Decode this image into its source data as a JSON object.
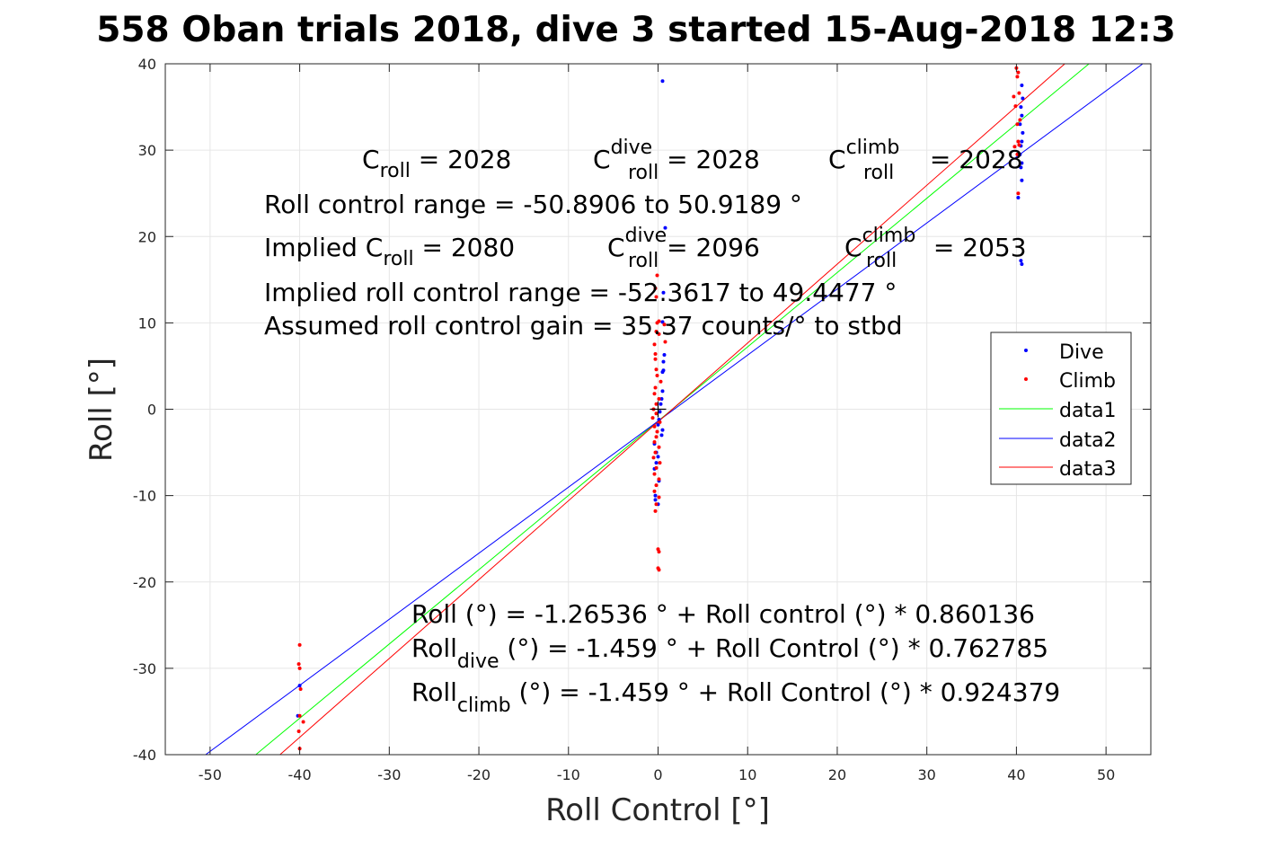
{
  "chart_data": {
    "type": "scatter",
    "title": "558 Oban trials 2018, dive 3 started 15-Aug-2018 12:3",
    "xlabel": "Roll Control [°]",
    "ylabel": "Roll [°]",
    "xlim": [
      -55,
      55
    ],
    "ylim": [
      -40,
      40
    ],
    "xticks": [
      -50,
      -40,
      -30,
      -20,
      -10,
      0,
      10,
      20,
      30,
      40,
      50
    ],
    "yticks": [
      -40,
      -30,
      -20,
      -10,
      0,
      10,
      20,
      30,
      40
    ],
    "grid": true,
    "legend_position": "right",
    "legend": [
      "Dive",
      "Climb",
      "data1",
      "data2",
      "data3"
    ],
    "colors": {
      "dive": "#0000ff",
      "climb": "#ff0000",
      "data1": "#00ff00",
      "data2": "#0000ff",
      "data3": "#ff0000"
    },
    "series": [
      {
        "name": "Dive",
        "style": "points",
        "points": [
          [
            0.5,
            38
          ],
          [
            0.8,
            21
          ],
          [
            0.6,
            13.5
          ],
          [
            0.5,
            10.1
          ],
          [
            0.7,
            6.3
          ],
          [
            0.6,
            5.5
          ],
          [
            0.6,
            4.5
          ],
          [
            0.5,
            4.3
          ],
          [
            0.5,
            2.1
          ],
          [
            0.4,
            1.2
          ],
          [
            0.3,
            0.6
          ],
          [
            0.2,
            -0.3
          ],
          [
            0.1,
            -1.2
          ],
          [
            0.0,
            -1.8
          ],
          [
            0.5,
            -2.4
          ],
          [
            0.4,
            -3
          ],
          [
            -0.4,
            -4
          ],
          [
            -0.2,
            -5
          ],
          [
            0,
            -5.5
          ],
          [
            -0.2,
            -6.2
          ],
          [
            -0.4,
            -6.9
          ],
          [
            0.1,
            -8.3
          ],
          [
            -0.3,
            -10
          ],
          [
            -0.3,
            -10.5
          ],
          [
            0,
            -11
          ],
          [
            40.6,
            37.5
          ],
          [
            40.7,
            36
          ],
          [
            40.5,
            35
          ],
          [
            40.6,
            34
          ],
          [
            40.4,
            33
          ],
          [
            40.7,
            32
          ],
          [
            40.6,
            31
          ],
          [
            40.5,
            30.5
          ],
          [
            40.4,
            29.5
          ],
          [
            40.6,
            28.5
          ],
          [
            40.5,
            28
          ],
          [
            40.6,
            26.5
          ],
          [
            40.2,
            24.5
          ],
          [
            40.5,
            17.2
          ],
          [
            40.6,
            16.8
          ],
          [
            -40,
            -32
          ],
          [
            -40.2,
            -35.5
          ]
        ]
      },
      {
        "name": "Climb",
        "style": "points",
        "points": [
          [
            40,
            39.5
          ],
          [
            40.2,
            39
          ],
          [
            40.1,
            38.5
          ],
          [
            40.3,
            36.6
          ],
          [
            39.7,
            36.2
          ],
          [
            39.9,
            35.1
          ],
          [
            40.4,
            33.5
          ],
          [
            40.1,
            33
          ],
          [
            40.2,
            31
          ],
          [
            40.3,
            30.6
          ],
          [
            39.8,
            30.4
          ],
          [
            40.1,
            29.5
          ],
          [
            40.2,
            25
          ],
          [
            -0.1,
            15.5
          ],
          [
            -0.3,
            14
          ],
          [
            -0.2,
            13
          ],
          [
            -0.1,
            10
          ],
          [
            0.1,
            10.2
          ],
          [
            0.7,
            9.8
          ],
          [
            -0.2,
            9
          ],
          [
            0.1,
            8.7
          ],
          [
            -0.4,
            7.5
          ],
          [
            0.8,
            7.8
          ],
          [
            -0.3,
            6.4
          ],
          [
            -0.3,
            5.8
          ],
          [
            -0.2,
            4.6
          ],
          [
            -0.1,
            3.9
          ],
          [
            0.3,
            3.2
          ],
          [
            -0.3,
            2.5
          ],
          [
            -0.4,
            1.8
          ],
          [
            0.1,
            1.2
          ],
          [
            -0.2,
            0.6
          ],
          [
            -0.5,
            0
          ],
          [
            -0.2,
            -0.5
          ],
          [
            -0.6,
            -1
          ],
          [
            0.2,
            -1.5
          ],
          [
            -0.4,
            -2
          ],
          [
            -0.1,
            -2.6
          ],
          [
            -0.2,
            -3.2
          ],
          [
            -0.4,
            -3.8
          ],
          [
            0.1,
            -4.4
          ],
          [
            -0.3,
            -5
          ],
          [
            -0.5,
            -5.6
          ],
          [
            0.2,
            -6.2
          ],
          [
            -0.2,
            -6.8
          ],
          [
            -0.4,
            -7.5
          ],
          [
            0.1,
            -8.1
          ],
          [
            -0.2,
            -8.8
          ],
          [
            -0.4,
            -9.5
          ],
          [
            0.1,
            -10.2
          ],
          [
            -0.2,
            -11
          ],
          [
            -0.3,
            -11.8
          ],
          [
            0,
            -16.2
          ],
          [
            0.1,
            -16.5
          ],
          [
            0,
            -18.4
          ],
          [
            0.1,
            -18.6
          ],
          [
            -40,
            -27.3
          ],
          [
            -40.1,
            -29.5
          ],
          [
            -40,
            -30
          ],
          [
            -39.9,
            -32.4
          ],
          [
            -40,
            -35.5
          ],
          [
            -39.6,
            -36.2
          ],
          [
            -40.1,
            -37.3
          ],
          [
            -40,
            -39.3
          ]
        ]
      },
      {
        "name": "data1",
        "style": "line",
        "points": [
          [
            -44.9,
            -40
          ],
          [
            48.1,
            40
          ]
        ]
      },
      {
        "name": "data2",
        "style": "line",
        "points": [
          [
            -50.5,
            -40
          ],
          [
            54.1,
            40
          ]
        ]
      },
      {
        "name": "data3",
        "style": "line",
        "points": [
          [
            -42.2,
            -40
          ],
          [
            45.4,
            40
          ]
        ]
      }
    ],
    "annotations": {
      "c_roll": {
        "prefix": "C",
        "sub": "roll",
        "value": " = 2028"
      },
      "c_dive": {
        "prefix": "C",
        "sup": "dive",
        "sub": "roll",
        "value": " = 2028"
      },
      "c_climb": {
        "prefix": "C",
        "sup": "climb",
        "sub": "roll",
        "value": " = 2028"
      },
      "range_line": "Roll control range = -50.8906 to 50.9189 °",
      "implied_c": {
        "prefix": "Implied C",
        "sub": "roll",
        "value": " = 2080"
      },
      "implied_dive": {
        "prefix": "C",
        "sup": "dive",
        "sub": "roll",
        "value": " = 2096"
      },
      "implied_climb": {
        "prefix": "C",
        "sup": "climb",
        "sub": "roll",
        "value": " = 2053"
      },
      "implied_range": "Implied roll control range = -52.3617 to 49.4477 °",
      "gain": "Assumed roll control gain = 35.37 counts/° to stbd",
      "fit_all": "Roll (°) = -1.26536 ° + Roll control (°) * 0.860136",
      "fit_dive": {
        "prefix": "Roll",
        "sub": "dive",
        "rest": " (°) = -1.459 ° + Roll Control (°) * 0.762785"
      },
      "fit_climb": {
        "prefix": "Roll",
        "sub": "climb",
        "rest": " (°) = -1.459 ° + Roll Control (°) * 0.924379"
      }
    }
  }
}
